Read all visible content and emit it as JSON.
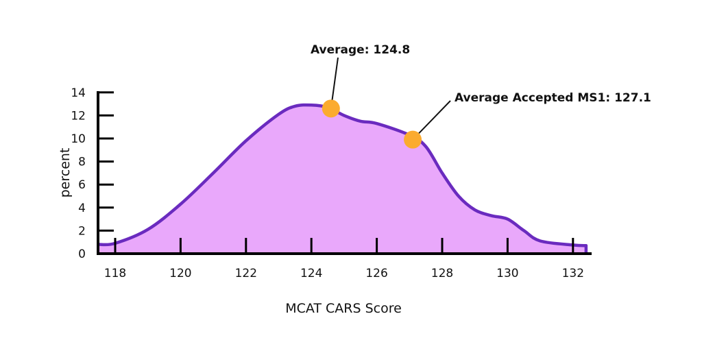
{
  "chart_data": {
    "type": "area",
    "title": "",
    "xlabel": "MCAT CARS Score",
    "ylabel": "percent",
    "xlim": [
      117.5,
      132.5
    ],
    "ylim": [
      0,
      14
    ],
    "x_ticks": [
      "118",
      "120",
      "122",
      "124",
      "126",
      "128",
      "130",
      "132"
    ],
    "y_ticks": [
      "0",
      "2",
      "4",
      "6",
      "8",
      "10",
      "12",
      "14"
    ],
    "grid": false,
    "legend": "none",
    "colors": {
      "fill": "#e9a8fb",
      "line": "#6a2bbf",
      "marker": "#fbab2f",
      "axis": "#000000"
    },
    "series": [
      {
        "x": [
          117.5,
          118,
          119,
          120,
          121,
          122,
          123,
          123.5,
          124,
          124.5,
          125,
          125.5,
          126,
          127,
          127.5,
          128,
          128.5,
          129,
          129.5,
          130,
          130.5,
          131,
          132,
          132.4
        ],
        "y": [
          0.8,
          0.9,
          2.1,
          4.3,
          7.0,
          9.8,
          12.1,
          12.8,
          12.9,
          12.7,
          12.0,
          11.5,
          11.3,
          10.3,
          9.3,
          7.0,
          5.0,
          3.8,
          3.3,
          3.0,
          2.0,
          1.1,
          0.75,
          0.7
        ]
      }
    ],
    "annotations": [
      {
        "label": "Average: 124.8",
        "x": 124.6,
        "y": 12.6
      },
      {
        "label": "Average Accepted MS1: 127.1",
        "x": 127.1,
        "y": 9.9
      }
    ]
  }
}
